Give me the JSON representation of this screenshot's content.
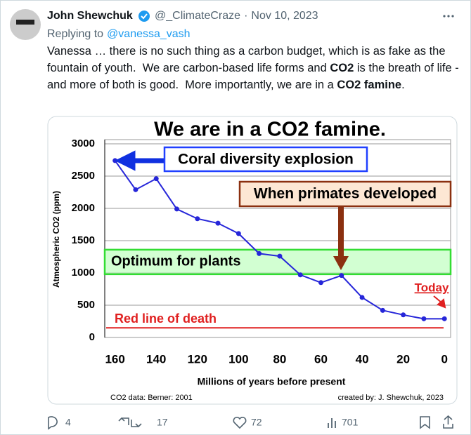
{
  "tweet": {
    "author_name": "John Shewchuk",
    "handle": "@_ClimateCraze",
    "separator": "·",
    "date": "Nov 10, 2023",
    "replying_prefix": "Replying to",
    "replying_to": "@vanessa_vash",
    "body": [
      {
        "text": "Vanessa … there is no such thing as a carbon budget, which is as fake as the fountain of youth.  We are carbon-based life forms and ",
        "bold": false
      },
      {
        "text": "CO2",
        "bold": true
      },
      {
        "text": " is the breath of life - and more of both is good.  More importantly, we are in a ",
        "bold": false
      },
      {
        "text": "CO2 famine",
        "bold": true
      },
      {
        "text": ".",
        "bold": false
      }
    ],
    "replies": 4,
    "reposts": 17,
    "likes": 72,
    "views": 701
  },
  "chart_data": {
    "type": "line",
    "title": "We are in a CO2 famine.",
    "x_label": "Millions of years before present",
    "y_label": "Atmospheric CO2 (ppm)",
    "x": [
      160,
      150,
      140,
      130,
      120,
      110,
      100,
      90,
      80,
      70,
      60,
      50,
      40,
      30,
      20,
      10,
      0
    ],
    "series": [
      {
        "name": "CO2",
        "color": "#2626d9",
        "values": [
          2740,
          2290,
          2460,
          1990,
          1840,
          1770,
          1610,
          1300,
          1260,
          970,
          850,
          960,
          620,
          420,
          350,
          290,
          290
        ]
      }
    ],
    "xlim": [
      165,
      -3
    ],
    "xticks": [
      160,
      140,
      120,
      100,
      80,
      60,
      40,
      20,
      0
    ],
    "ylim": [
      0,
      3000
    ],
    "yticks": [
      0,
      500,
      1000,
      1500,
      2000,
      2500,
      3000
    ],
    "grid": true,
    "annotations": [
      "Coral diversity explosion",
      "When primates developed",
      "Optimum for plants",
      "Red line of death",
      "Today"
    ],
    "optimum_range": [
      980,
      1360
    ],
    "death_line": 150,
    "source": "CO2 data: Berner: 2001",
    "credit": "created by: J. Shewchuk, 2023"
  }
}
